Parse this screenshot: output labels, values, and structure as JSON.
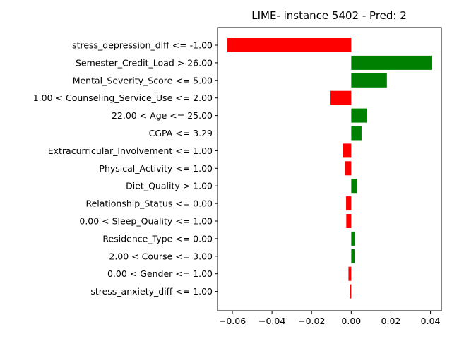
{
  "chart_data": {
    "type": "bar",
    "orientation": "horizontal",
    "title": "LIME- instance 5402 - Pred: 2",
    "xlabel": "",
    "ylabel": "",
    "xlim": [
      -0.0675,
      0.0455
    ],
    "xticks": [
      -0.06,
      -0.04,
      -0.02,
      0.0,
      0.02,
      0.04
    ],
    "xtick_labels": [
      "−0.06",
      "−0.04",
      "−0.02",
      "0.00",
      "0.02",
      "0.04"
    ],
    "grid": false,
    "positive_color": "#008000",
    "negative_color": "#ff0000",
    "categories": [
      "stress_depression_diff <= -1.00",
      "Semester_Credit_Load > 26.00",
      "Mental_Severity_Score <= 5.00",
      "1.00 < Counseling_Service_Use <= 2.00",
      "22.00 < Age <= 25.00",
      "CGPA <= 3.29",
      "Extracurricular_Involvement <= 1.00",
      "Physical_Activity <= 1.00",
      "Diet_Quality > 1.00",
      "Relationship_Status <= 0.00",
      "0.00 < Sleep_Quality <= 1.00",
      "Residence_Type <= 0.00",
      "2.00 < Course <= 3.00",
      "0.00 < Gender <= 1.00",
      "stress_anxiety_diff <= 1.00"
    ],
    "values": [
      -0.0625,
      0.0405,
      0.018,
      -0.0108,
      0.0078,
      0.0052,
      -0.0043,
      -0.0032,
      0.0029,
      -0.0026,
      -0.0025,
      0.0018,
      0.0017,
      -0.0014,
      -0.0008
    ]
  }
}
